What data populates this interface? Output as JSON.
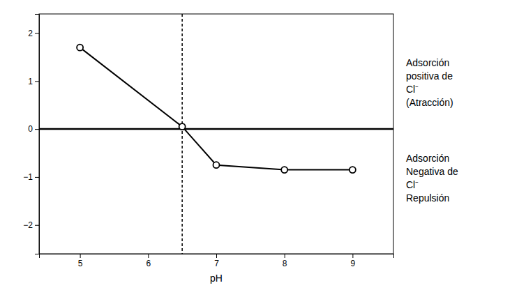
{
  "chart_data": {
    "type": "line",
    "x": [
      5.0,
      6.5,
      7.0,
      8.0,
      9.0
    ],
    "values": [
      1.7,
      0.05,
      -0.75,
      -0.85,
      -0.85
    ],
    "xlabel": "pH",
    "xlim": [
      4.4,
      9.6
    ],
    "ylim": [
      -2.6,
      2.4
    ],
    "xticks": [
      5,
      6,
      7,
      8,
      9
    ],
    "yticks": [
      {
        "value": -2,
        "label": "−2"
      },
      {
        "value": -1,
        "label": "−1"
      },
      0,
      1,
      2
    ],
    "hline": 0,
    "vline": 6.5,
    "color": "#000000",
    "marker": "circle",
    "line_style": "solid",
    "grid": false,
    "annotations": [
      "Adsorción\npositiva de\nCl⁻\n(Atracción)",
      "Adsorción\nNegativa de\nCl⁻\nRepulsión"
    ]
  }
}
